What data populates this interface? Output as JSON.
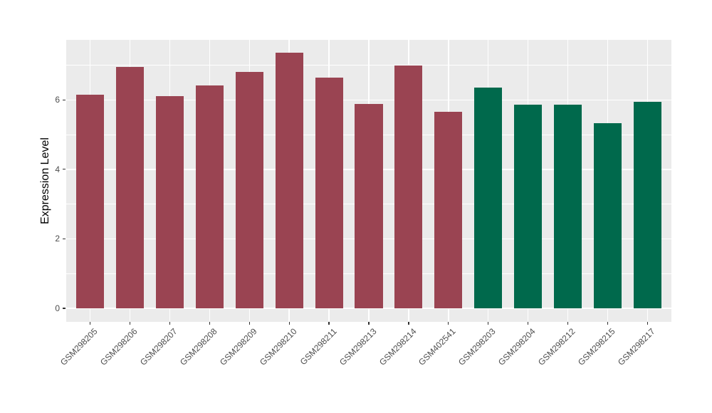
{
  "figure": {
    "background": "#FFFFFF",
    "panel_background": "#EBEBEB",
    "gridline_color": "#FFFFFF",
    "tick_mark_color": "#333333",
    "tick_label_color": "#4D4D4D"
  },
  "chart_data": {
    "type": "bar",
    "title": "",
    "xlabel": "",
    "ylabel": "Expression Level",
    "categories": [
      "GSM298205",
      "GSM298206",
      "GSM298207",
      "GSM298208",
      "GSM298209",
      "GSM298210",
      "GSM298211",
      "GSM298213",
      "GSM298214",
      "GSM402541",
      "GSM298203",
      "GSM298204",
      "GSM298212",
      "GSM298215",
      "GSM298217"
    ],
    "values": [
      6.16,
      6.96,
      6.12,
      6.42,
      6.81,
      7.36,
      6.65,
      5.89,
      7.0,
      5.66,
      6.35,
      5.87,
      5.87,
      5.34,
      5.94
    ],
    "bar_colors": [
      "#9A4452",
      "#9A4452",
      "#9A4452",
      "#9A4452",
      "#9A4452",
      "#9A4452",
      "#9A4452",
      "#9A4452",
      "#9A4452",
      "#9A4452",
      "#00694C",
      "#00694C",
      "#00694C",
      "#00694C",
      "#00694C"
    ],
    "groups": [
      {
        "color": "#9A4452",
        "count": 10
      },
      {
        "color": "#00694C",
        "count": 5
      }
    ],
    "y_ticks": [
      0,
      2,
      4,
      6
    ],
    "y_minor_gridlines": [
      1,
      3,
      5,
      7
    ],
    "ylim": [
      -0.39,
      7.73
    ],
    "grid": true,
    "legend": "none",
    "bar_width_fraction": 0.7,
    "x_label_rotation_deg": 45
  }
}
